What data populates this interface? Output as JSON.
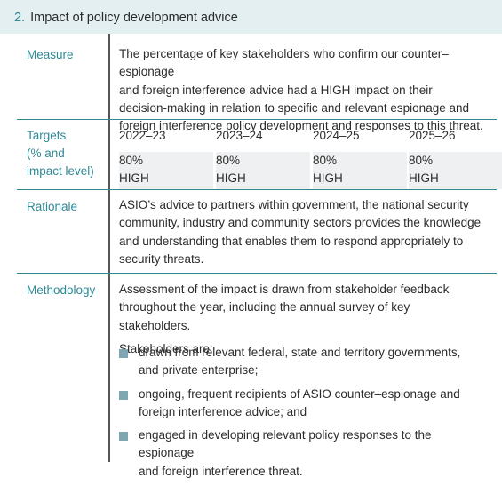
{
  "header": {
    "number": "2.",
    "title": "Impact of policy development advice"
  },
  "measure": {
    "label": "Measure",
    "lines": [
      "The percentage of key stakeholders who confirm our counter–espionage",
      "and foreign interference advice had a HIGH impact on their",
      "decision-making in relation to specific and relevant espionage and",
      "foreign interference policy development and responses to this threat."
    ]
  },
  "targets": {
    "label_lines": [
      "Targets",
      "(% and",
      "impact level)"
    ],
    "years": [
      {
        "year": "2022–23",
        "percent": "80%",
        "level": "HIGH"
      },
      {
        "year": "2023–24",
        "percent": "80%",
        "level": "HIGH"
      },
      {
        "year": "2024–25",
        "percent": "80%",
        "level": "HIGH"
      },
      {
        "year": "2025–26",
        "percent": "80%",
        "level": "HIGH"
      }
    ]
  },
  "rationale": {
    "label": "Rationale",
    "lines": [
      "ASIO’s advice to partners within government, the national security",
      "community, industry and community sectors provides the knowledge",
      "and understanding that enables them to respond appropriately to",
      "security threats."
    ]
  },
  "methodology": {
    "label": "Methodology",
    "lines": [
      "Assessment of the impact is drawn from stakeholder feedback",
      "throughout the year, including the annual survey of key stakeholders."
    ],
    "stakeholders_intro": "Stakeholders are:",
    "bullets": [
      [
        "drawn from relevant federal, state and territory governments,",
        "and private enterprise;"
      ],
      [
        "ongoing, frequent recipients of ASIO counter–espionage and",
        "foreign interference advice; and"
      ],
      [
        "engaged in developing relevant policy responses to the espionage",
        "and foreign interference threat."
      ]
    ]
  },
  "colors": {
    "accent": "#2f8a96",
    "header_bg": "#e3eff1",
    "target_bg": "#eef0f1",
    "bullet": "#7fa7b2"
  }
}
